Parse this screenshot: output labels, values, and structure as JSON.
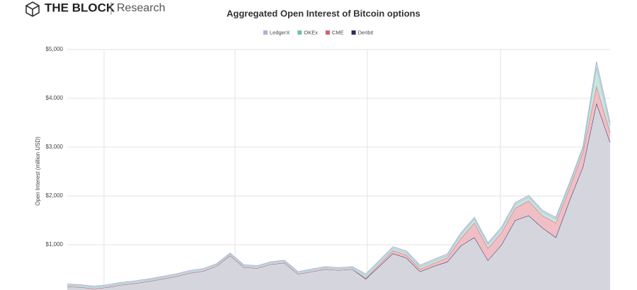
{
  "brand": "THE BLOCK",
  "brand_sub": "Research",
  "chart_data": {
    "type": "stacked_area",
    "title": "Aggregated Open Interest of Bitcoin options",
    "ylabel": "Open Interest (million USD)",
    "categories": [
      null,
      null,
      null,
      null,
      null,
      null,
      null,
      null,
      null,
      null,
      null,
      null,
      null,
      null,
      null,
      null,
      null,
      null,
      null,
      null,
      null,
      null,
      null,
      null,
      null,
      null,
      null,
      null,
      null,
      null,
      null,
      null,
      null,
      null,
      null,
      null,
      null,
      null,
      null,
      null,
      null
    ],
    "ylim": [
      0,
      5000
    ],
    "yticks": [
      {
        "value": 1000,
        "label": "$1,000"
      },
      {
        "value": 2000,
        "label": "$2,000"
      },
      {
        "value": 3000,
        "label": "$3,000"
      },
      {
        "value": 4000,
        "label": "$4,000"
      },
      {
        "value": 5000,
        "label": "$5,000"
      }
    ],
    "grid": true,
    "legend": "top",
    "series": [
      {
        "name": "LedgerX",
        "color": "#b3aed6",
        "values": [
          20,
          20,
          20,
          20,
          20,
          20,
          20,
          20,
          20,
          20,
          20,
          20,
          20,
          20,
          20,
          20,
          20,
          20,
          20,
          20,
          20,
          20,
          30,
          30,
          30,
          30,
          30,
          30,
          30,
          30,
          30,
          30,
          30,
          30,
          30,
          30,
          30,
          30,
          30,
          100,
          60
        ]
      },
      {
        "name": "OKEx",
        "color": "#6fc0b0",
        "values": [
          30,
          30,
          30,
          30,
          30,
          30,
          30,
          30,
          30,
          30,
          30,
          30,
          30,
          30,
          30,
          30,
          30,
          30,
          30,
          30,
          30,
          30,
          50,
          50,
          50,
          50,
          50,
          50,
          50,
          80,
          80,
          80,
          80,
          80,
          80,
          80,
          80,
          80,
          80,
          400,
          150
        ]
      },
      {
        "name": "CME",
        "color": "#d9606e",
        "values": [
          0,
          0,
          0,
          0,
          0,
          0,
          0,
          0,
          0,
          0,
          0,
          0,
          0,
          0,
          0,
          0,
          0,
          0,
          0,
          0,
          0,
          0,
          20,
          40,
          60,
          60,
          50,
          60,
          80,
          150,
          300,
          250,
          250,
          250,
          300,
          250,
          300,
          250,
          300,
          350,
          200
        ]
      },
      {
        "name": "Deribit",
        "color": "#2b2d5c",
        "values": [
          145,
          130,
          100,
          130,
          180,
          210,
          250,
          300,
          350,
          420,
          460,
          560,
          780,
          540,
          520,
          600,
          630,
          400,
          450,
          500,
          480,
          500,
          300,
          560,
          820,
          730,
          450,
          560,
          650,
          980,
          1150,
          680,
          1000,
          1500,
          1600,
          1350,
          1150,
          1900,
          2600,
          3900,
          3100
        ]
      }
    ]
  }
}
